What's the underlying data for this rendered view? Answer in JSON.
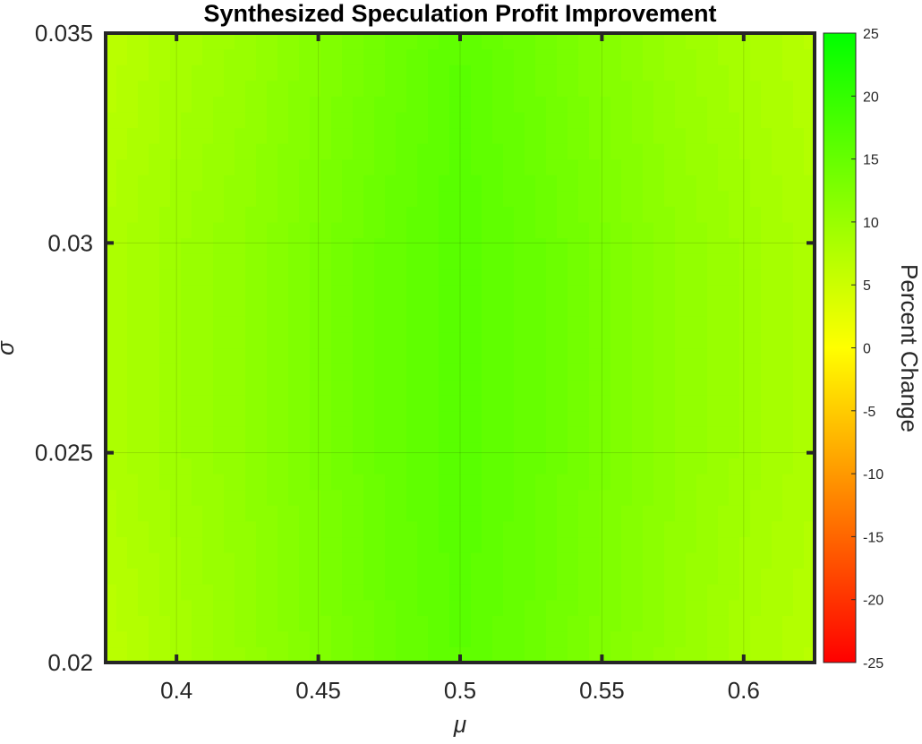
{
  "chart_data": {
    "type": "heatmap",
    "title": "Synthesized Speculation Profit Improvement",
    "xlabel": "μ",
    "ylabel": "σ",
    "xlim": [
      0.375,
      0.625
    ],
    "ylim": [
      0.02,
      0.035
    ],
    "x_ticks": [
      0.4,
      0.45,
      0.5,
      0.55,
      0.6
    ],
    "x_tick_labels": [
      "0.4",
      "0.45",
      "0.5",
      "0.55",
      "0.6"
    ],
    "y_ticks": [
      0.02,
      0.025,
      0.03,
      0.035
    ],
    "y_tick_labels": [
      "0.02",
      "0.025",
      "0.03",
      "0.035"
    ],
    "grid": true,
    "x": [
      0.375,
      0.4,
      0.425,
      0.45,
      0.475,
      0.5,
      0.525,
      0.55,
      0.575,
      0.6,
      0.625
    ],
    "y": [
      0.02,
      0.025,
      0.03,
      0.035
    ],
    "z": [
      [
        6.5,
        8.5,
        10.5,
        12.5,
        14.5,
        16.0,
        14.5,
        12.5,
        10.5,
        8.5,
        7.0
      ],
      [
        8.0,
        9.5,
        11.0,
        13.0,
        15.0,
        16.5,
        15.0,
        13.0,
        11.0,
        9.5,
        8.0
      ],
      [
        8.0,
        9.5,
        11.0,
        13.0,
        15.0,
        16.5,
        15.0,
        13.0,
        11.0,
        9.5,
        8.0
      ],
      [
        6.5,
        8.5,
        10.0,
        12.0,
        14.0,
        16.0,
        14.0,
        12.0,
        10.0,
        8.5,
        7.0
      ]
    ],
    "colorbar": {
      "label": "Percent Change",
      "min": -25,
      "max": 25,
      "ticks": [
        25,
        20,
        15,
        10,
        5,
        0,
        -5,
        -10,
        -15,
        -20,
        -25
      ],
      "tick_labels": [
        "25",
        "20",
        "15",
        "10",
        "5",
        "0",
        "-5",
        "-10",
        "-15",
        "-20",
        "-25"
      ],
      "colormap": [
        "#ff0000",
        "#ffff00",
        "#00ff00"
      ]
    }
  }
}
